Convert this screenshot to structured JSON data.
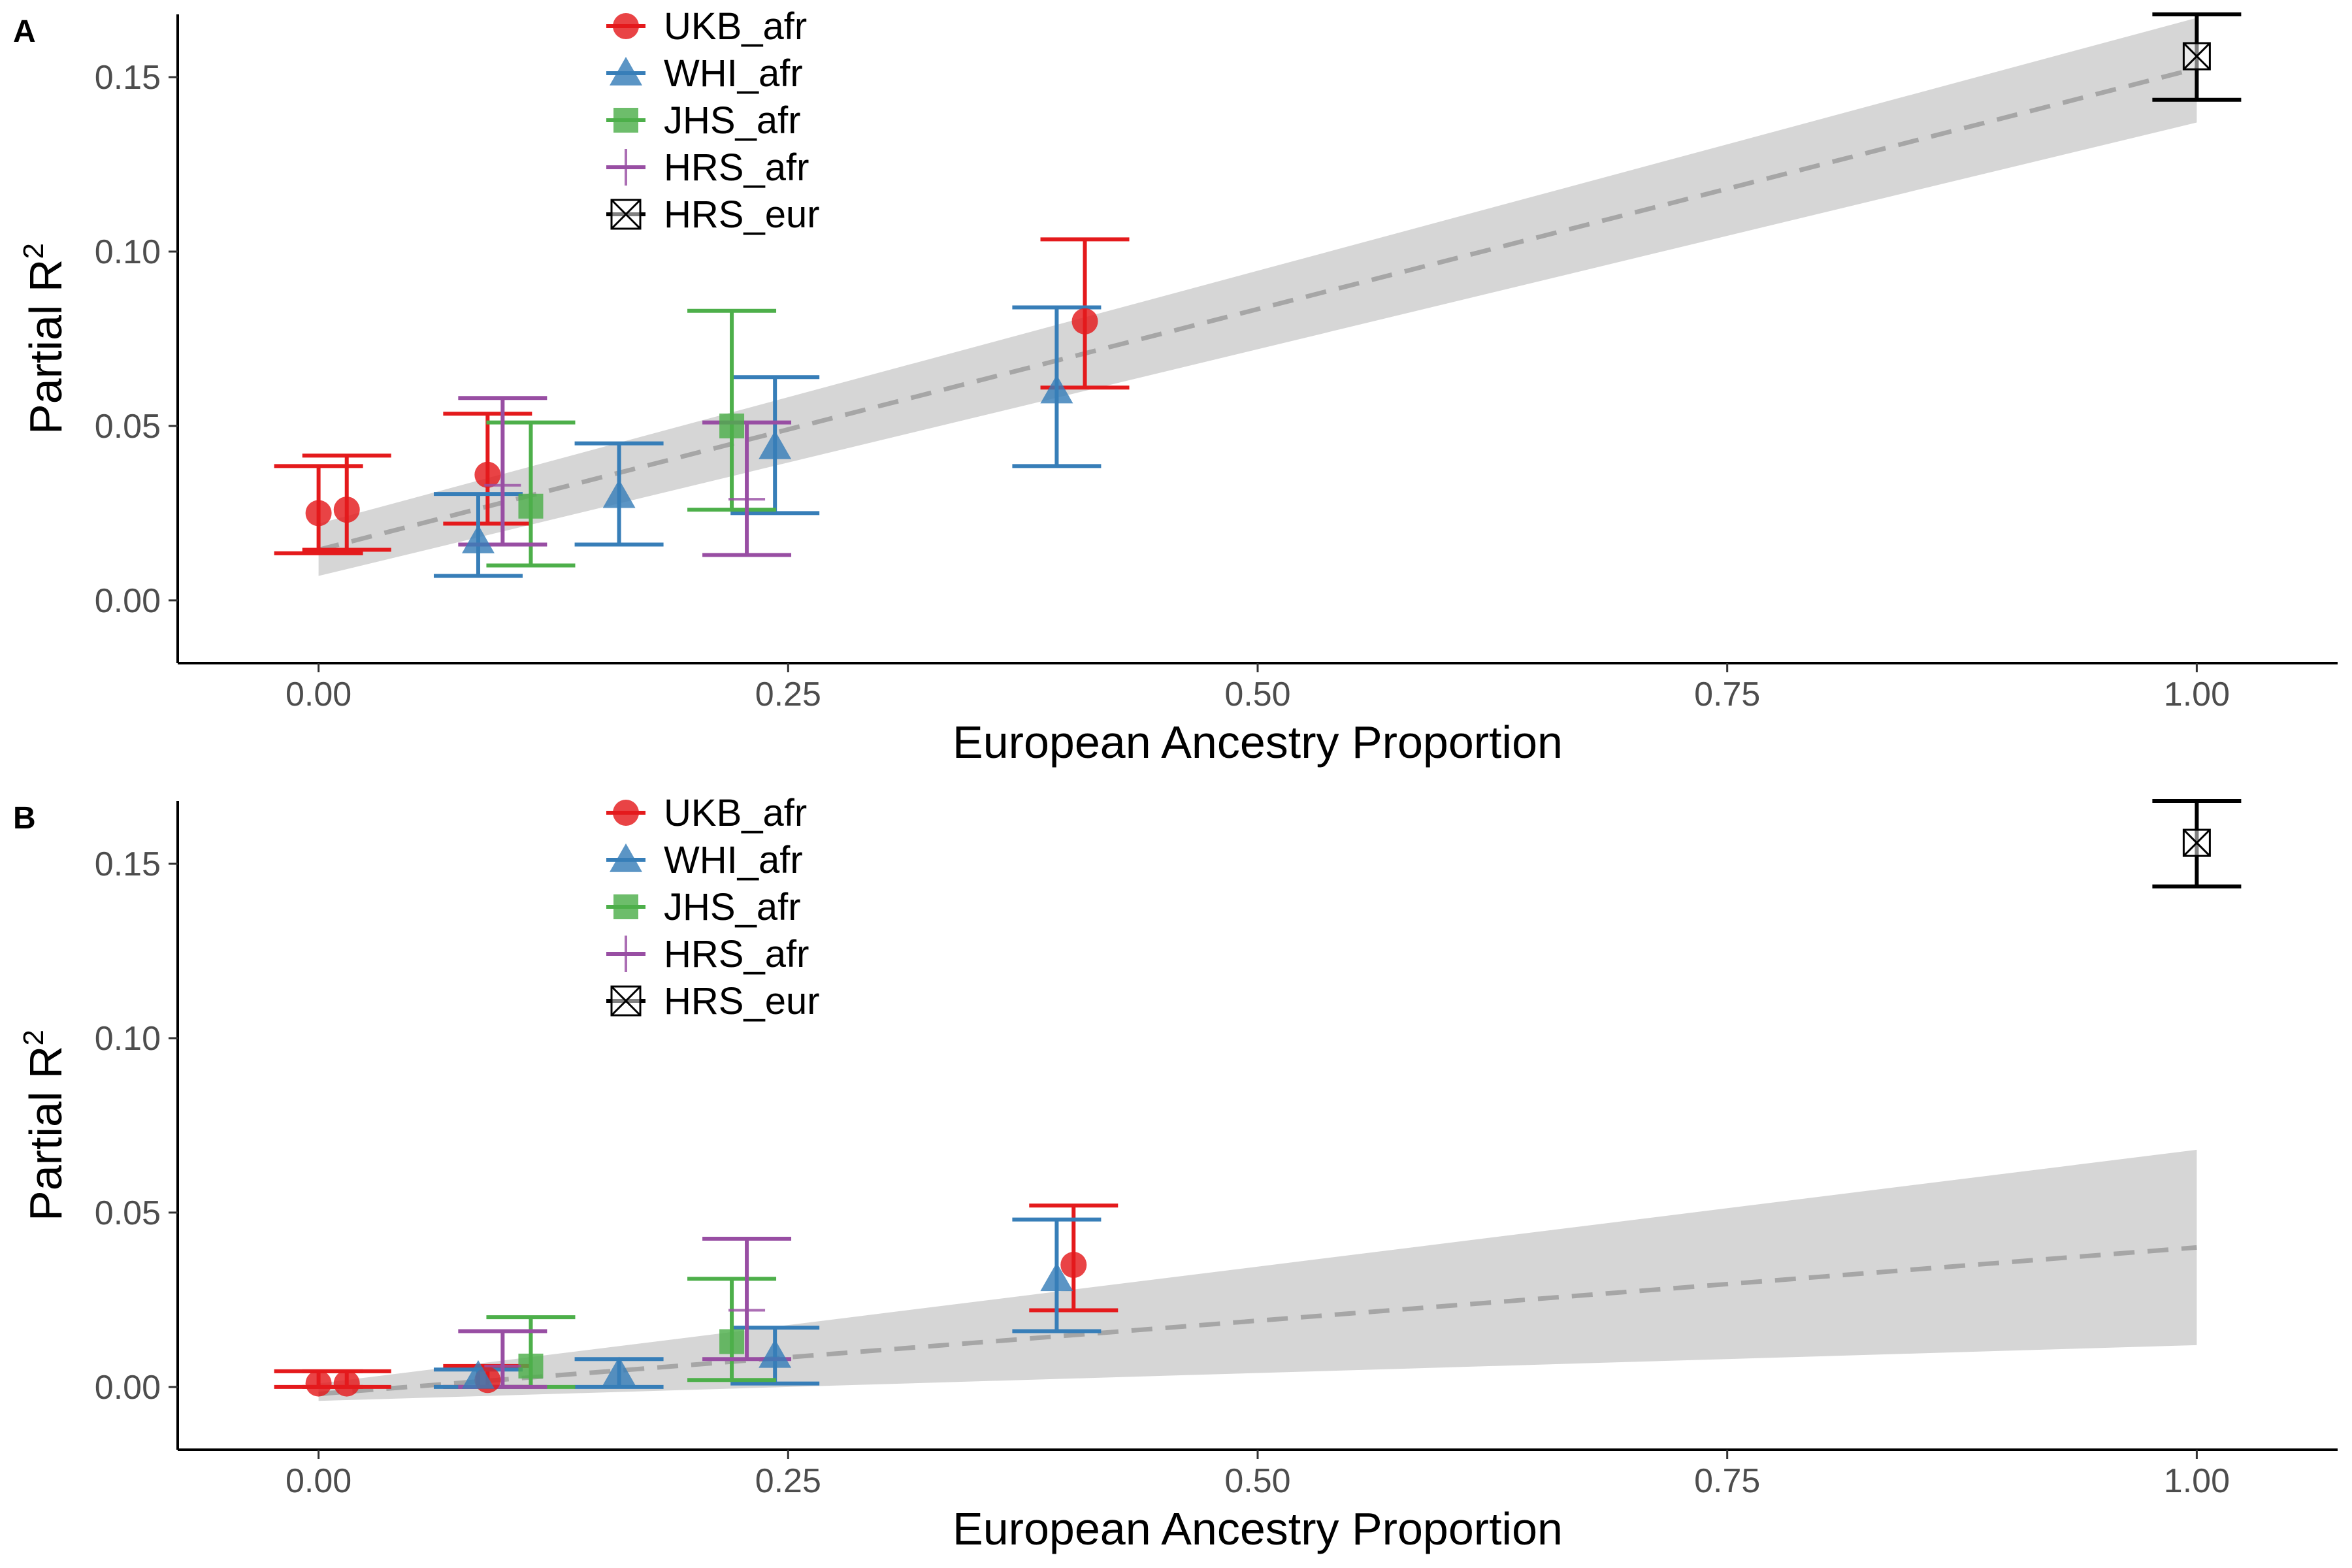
{
  "chart_data": [
    {
      "type": "scatter",
      "panel_label": "A",
      "xlabel": "European Ancestry Proportion",
      "ylabel_main": "Partial R",
      "ylabel_superscript": "2",
      "xlim": [
        -0.075,
        1.075
      ],
      "ylim": [
        -0.018,
        0.168
      ],
      "x_ticks": [
        0,
        0.25,
        0.5,
        0.75,
        1
      ],
      "x_tick_labels": [
        "0.00",
        "0.25",
        "0.50",
        "0.75",
        "1.00"
      ],
      "y_ticks": [
        0,
        0.05,
        0.1,
        0.15
      ],
      "y_tick_labels": [
        "0.00",
        "0.05",
        "0.10",
        "0.15"
      ],
      "grid": false,
      "legend_position": "top-left",
      "trend": {
        "x": [
          0,
          1
        ],
        "y": [
          0.0145,
          0.1525
        ],
        "ci_lower": [
          0.007,
          0.137
        ],
        "ci_upper": [
          0.022,
          0.167
        ]
      },
      "series": [
        {
          "name": "UKB_afr",
          "marker": "circle",
          "color": "#E41A1C",
          "points": [
            {
              "x": 0.0,
              "y": 0.025,
              "lo": 0.0135,
              "hi": 0.0385
            },
            {
              "x": 0.015,
              "y": 0.026,
              "lo": 0.0145,
              "hi": 0.0415
            },
            {
              "x": 0.09,
              "y": 0.036,
              "lo": 0.022,
              "hi": 0.0535
            },
            {
              "x": 0.408,
              "y": 0.08,
              "lo": 0.061,
              "hi": 0.1035
            }
          ]
        },
        {
          "name": "WHI_afr",
          "marker": "triangle",
          "color": "#377EB8",
          "points": [
            {
              "x": 0.085,
              "y": 0.017,
              "lo": 0.007,
              "hi": 0.0305
            },
            {
              "x": 0.16,
              "y": 0.03,
              "lo": 0.016,
              "hi": 0.045
            },
            {
              "x": 0.243,
              "y": 0.044,
              "lo": 0.025,
              "hi": 0.064
            },
            {
              "x": 0.393,
              "y": 0.06,
              "lo": 0.0385,
              "hi": 0.084
            }
          ]
        },
        {
          "name": "JHS_afr",
          "marker": "square",
          "color": "#4DAF4A",
          "points": [
            {
              "x": 0.113,
              "y": 0.027,
              "lo": 0.01,
              "hi": 0.051
            },
            {
              "x": 0.22,
              "y": 0.05,
              "lo": 0.026,
              "hi": 0.083
            }
          ]
        },
        {
          "name": "HRS_afr",
          "marker": "plus",
          "color": "#984EA3",
          "points": [
            {
              "x": 0.098,
              "y": 0.033,
              "lo": 0.016,
              "hi": 0.058
            },
            {
              "x": 0.228,
              "y": 0.029,
              "lo": 0.013,
              "hi": 0.051
            }
          ]
        },
        {
          "name": "HRS_eur",
          "marker": "boxx",
          "color": "#000000",
          "points": [
            {
              "x": 1.0,
              "y": 0.156,
              "lo": 0.1435,
              "hi": 0.168
            }
          ]
        }
      ]
    },
    {
      "type": "scatter",
      "panel_label": "B",
      "xlabel": "European Ancestry Proportion",
      "ylabel_main": "Partial R",
      "ylabel_superscript": "2",
      "xlim": [
        -0.075,
        1.075
      ],
      "ylim": [
        -0.018,
        0.168
      ],
      "x_ticks": [
        0,
        0.25,
        0.5,
        0.75,
        1
      ],
      "x_tick_labels": [
        "0.00",
        "0.25",
        "0.50",
        "0.75",
        "1.00"
      ],
      "y_ticks": [
        0,
        0.05,
        0.1,
        0.15
      ],
      "y_tick_labels": [
        "0.00",
        "0.05",
        "0.10",
        "0.15"
      ],
      "grid": false,
      "legend_position": "top-left",
      "trend": {
        "x": [
          0,
          1
        ],
        "y": [
          -0.002,
          0.04
        ],
        "ci_lower": [
          -0.004,
          0.012
        ],
        "ci_upper": [
          0.001,
          0.068
        ]
      },
      "series": [
        {
          "name": "UKB_afr",
          "marker": "circle",
          "color": "#E41A1C",
          "points": [
            {
              "x": 0.0,
              "y": 0.001,
              "lo": 0.0,
              "hi": 0.0045
            },
            {
              "x": 0.015,
              "y": 0.001,
              "lo": 0.0,
              "hi": 0.0045
            },
            {
              "x": 0.09,
              "y": 0.002,
              "lo": 0.0,
              "hi": 0.006
            },
            {
              "x": 0.402,
              "y": 0.035,
              "lo": 0.022,
              "hi": 0.052
            }
          ]
        },
        {
          "name": "WHI_afr",
          "marker": "triangle",
          "color": "#377EB8",
          "points": [
            {
              "x": 0.085,
              "y": 0.003,
              "lo": 0.0,
              "hi": 0.005
            },
            {
              "x": 0.16,
              "y": 0.004,
              "lo": 0.0,
              "hi": 0.008
            },
            {
              "x": 0.243,
              "y": 0.009,
              "lo": 0.001,
              "hi": 0.017
            },
            {
              "x": 0.393,
              "y": 0.031,
              "lo": 0.016,
              "hi": 0.048
            }
          ]
        },
        {
          "name": "JHS_afr",
          "marker": "square",
          "color": "#4DAF4A",
          "points": [
            {
              "x": 0.113,
              "y": 0.006,
              "lo": 0.0,
              "hi": 0.02
            },
            {
              "x": 0.22,
              "y": 0.013,
              "lo": 0.002,
              "hi": 0.031
            }
          ]
        },
        {
          "name": "HRS_afr",
          "marker": "plus",
          "color": "#984EA3",
          "points": [
            {
              "x": 0.098,
              "y": 0.006,
              "lo": 0.0,
              "hi": 0.016
            },
            {
              "x": 0.228,
              "y": 0.022,
              "lo": 0.008,
              "hi": 0.0425
            }
          ]
        },
        {
          "name": "HRS_eur",
          "marker": "boxx",
          "color": "#000000",
          "points": [
            {
              "x": 1.0,
              "y": 0.156,
              "lo": 0.1435,
              "hi": 0.168
            }
          ]
        }
      ]
    }
  ]
}
